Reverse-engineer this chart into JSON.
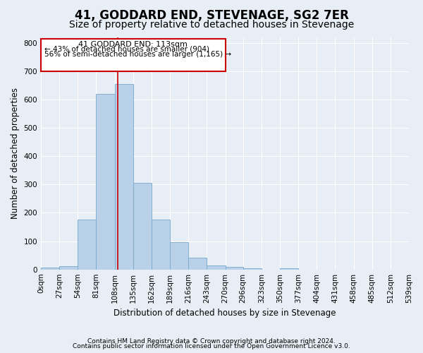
{
  "title": "41, GODDARD END, STEVENAGE, SG2 7ER",
  "subtitle": "Size of property relative to detached houses in Stevenage",
  "xlabel": "Distribution of detached houses by size in Stevenage",
  "ylabel": "Number of detached properties",
  "footnote1": "Contains HM Land Registry data © Crown copyright and database right 2024.",
  "footnote2": "Contains public sector information licensed under the Open Government Licence v3.0.",
  "bin_edges": [
    0,
    27,
    54,
    81,
    108,
    135,
    162,
    189,
    216,
    243,
    270,
    296,
    323,
    350,
    377,
    404,
    431,
    458,
    485,
    512,
    539
  ],
  "bar_heights": [
    7,
    12,
    175,
    620,
    655,
    305,
    175,
    97,
    42,
    15,
    10,
    5,
    0,
    5,
    0,
    0,
    0,
    0,
    0,
    0
  ],
  "bar_color": "#b8d0e8",
  "bar_edge_color": "#7aa8cc",
  "property_size": 113,
  "vline_color": "#cc0000",
  "annotation_line1": "41 GODDARD END: 113sqm",
  "annotation_line2": "← 43% of detached houses are smaller (904)",
  "annotation_line3": "56% of semi-detached houses are larger (1,165) →",
  "annotation_box_color": "#ffffff",
  "annotation_box_edge": "#cc0000",
  "ylim": [
    0,
    820
  ],
  "yticks": [
    0,
    100,
    200,
    300,
    400,
    500,
    600,
    700,
    800
  ],
  "bg_color": "#e8eef5",
  "plot_bg_color": "#e8eef5",
  "grid_color": "#ffffff",
  "title_fontsize": 12,
  "subtitle_fontsize": 10,
  "axis_label_fontsize": 8.5,
  "tick_fontsize": 7.5,
  "footnote_fontsize": 6.5
}
